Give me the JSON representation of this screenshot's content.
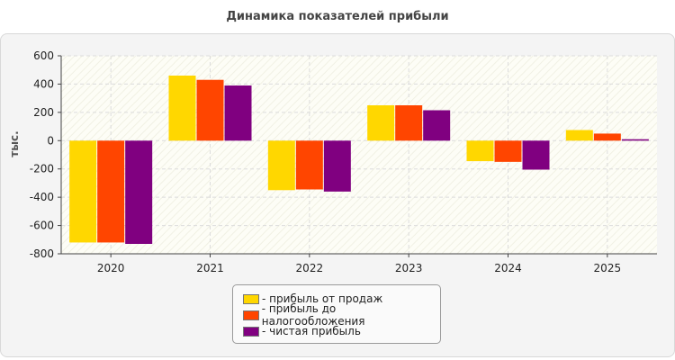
{
  "chart_data": {
    "type": "bar",
    "title": "Динамика показателей прибыли",
    "ylabel": "тыс.",
    "xlabel": "",
    "categories": [
      "2020",
      "2021",
      "2022",
      "2023",
      "2024",
      "2025"
    ],
    "ylim": [
      -800,
      600
    ],
    "yticks": [
      600,
      400,
      200,
      0,
      -200,
      -400,
      -600,
      -800
    ],
    "grid": true,
    "legend_position": "bottom",
    "series": [
      {
        "name": "- прибыль от продаж",
        "color": "#FFD700",
        "values": [
          -720,
          460,
          -350,
          250,
          -145,
          75
        ]
      },
      {
        "name": "- прибыль до налогообложения",
        "color": "#FF4500",
        "values": [
          -720,
          430,
          -345,
          250,
          -150,
          50
        ]
      },
      {
        "name": "- чистая прибыль",
        "color": "#800080",
        "values": [
          -730,
          390,
          -360,
          215,
          -205,
          10
        ]
      }
    ]
  }
}
